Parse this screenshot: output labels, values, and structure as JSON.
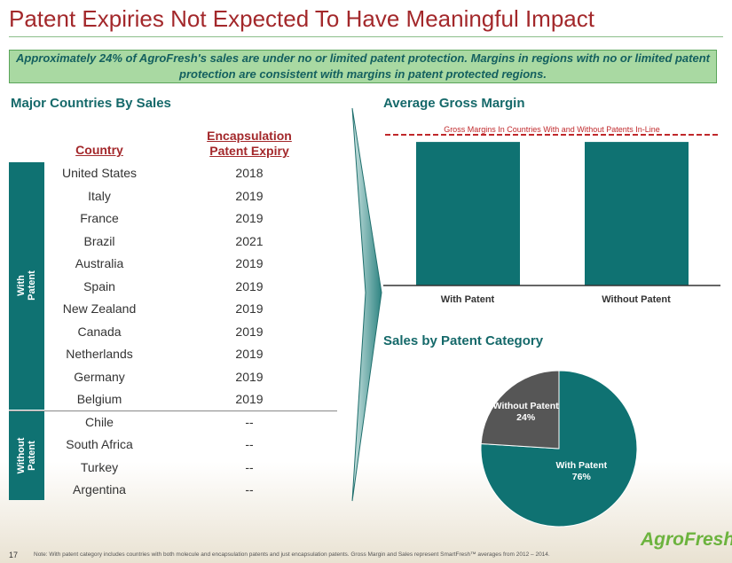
{
  "header": {
    "title": "Patent Expiries Not Expected To Have Meaningful Impact",
    "callout": "Approximately 24% of AgroFresh's sales are under no or limited patent protection. Margins in regions with no or limited patent protection are consistent with margins in patent protected regions."
  },
  "table": {
    "title": "Major Countries By Sales",
    "columns": [
      "Country",
      "Encapsulation Patent Expiry"
    ],
    "groups": [
      {
        "label": "With Patent",
        "rows": [
          [
            "United States",
            "2018"
          ],
          [
            "Italy",
            "2019"
          ],
          [
            "France",
            "2019"
          ],
          [
            "Brazil",
            "2021"
          ],
          [
            "Australia",
            "2019"
          ],
          [
            "Spain",
            "2019"
          ],
          [
            "New Zealand",
            "2019"
          ],
          [
            "Canada",
            "2019"
          ],
          [
            "Netherlands",
            "2019"
          ],
          [
            "Germany",
            "2019"
          ],
          [
            "Belgium",
            "2019"
          ]
        ]
      },
      {
        "label": "Without Patent",
        "rows": [
          [
            "Chile",
            "--"
          ],
          [
            "South Africa",
            "--"
          ],
          [
            "Turkey",
            "--"
          ],
          [
            "Argentina",
            "--"
          ]
        ]
      }
    ]
  },
  "chart_data": [
    {
      "type": "bar",
      "title": "Average Gross Margin",
      "annotation": "Gross Margins In Countries With and Without Patents In-Line",
      "categories": [
        "With Patent",
        "Without Patent"
      ],
      "values": [
        100,
        100
      ],
      "ylim": [
        0,
        105
      ],
      "color": "#0f7272"
    },
    {
      "type": "pie",
      "title": "Sales by Patent Category",
      "categories": [
        "With Patent",
        "Without Patent"
      ],
      "values": [
        76,
        24
      ],
      "value_labels": [
        "76%",
        "24%"
      ],
      "colors": [
        "#0f7272",
        "#565656"
      ]
    }
  ],
  "footer": {
    "page": "17",
    "note": "Note: With patent category includes countries with both molecule and encapsulation patents and just encapsulation patents. Gross Margin and Sales represent SmartFresh™ averages from 2012 – 2014.",
    "logo": "AgroFresh",
    "logo_tm": "TM"
  }
}
